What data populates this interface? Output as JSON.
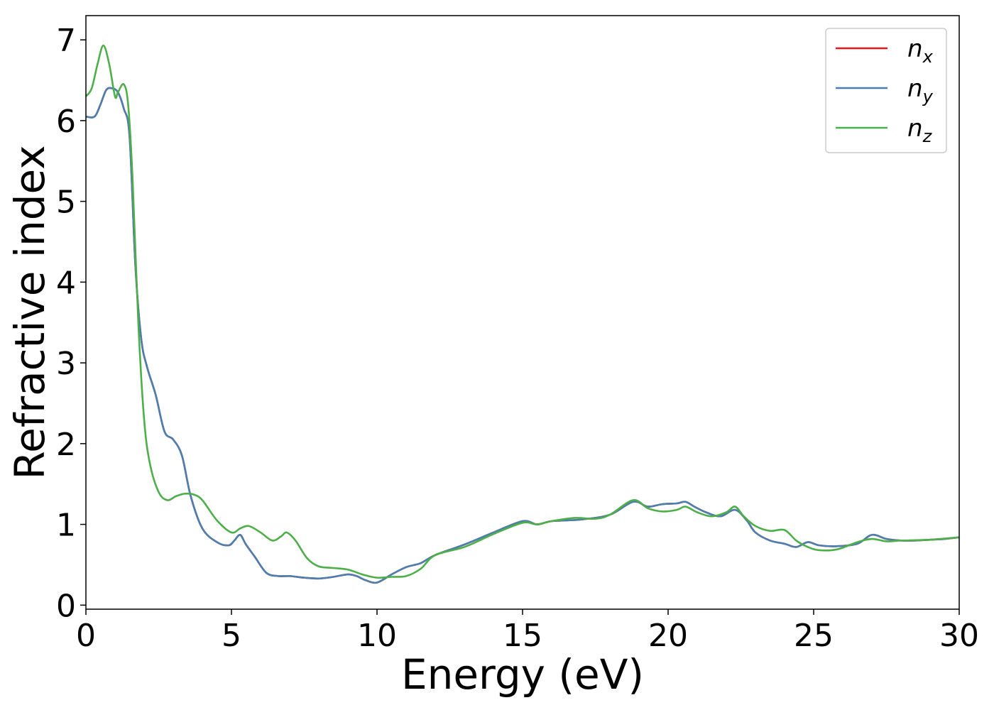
{
  "chart_data": {
    "type": "line",
    "title": "",
    "xlabel": "Energy (eV)",
    "ylabel": "Refractive index",
    "xlim": [
      0,
      30
    ],
    "ylim": [
      -0.05,
      7.3
    ],
    "xticks": [
      0,
      5,
      10,
      15,
      20,
      25,
      30
    ],
    "yticks": [
      0,
      1,
      2,
      3,
      4,
      5,
      6,
      7
    ],
    "grid": false,
    "legend_placement": "top-right",
    "series": [
      {
        "name": "n_x",
        "label_base": "n",
        "label_sub": "x",
        "color": "#e41a1c",
        "x": [
          0,
          0.3,
          0.5,
          0.7,
          0.9,
          1.1,
          1.3,
          1.5,
          1.7,
          1.9,
          2.1,
          2.4,
          2.7,
          3.0,
          3.3,
          3.6,
          4.0,
          4.5,
          4.9,
          5.1,
          5.3,
          5.5,
          5.8,
          6.2,
          6.6,
          7.0,
          7.5,
          8.0,
          8.5,
          9.0,
          9.3,
          9.6,
          10.0,
          10.5,
          11.0,
          11.5,
          12.0,
          13.0,
          14.0,
          15.0,
          15.5,
          16.0,
          17.0,
          18.0,
          18.8,
          19.3,
          19.8,
          20.3,
          20.6,
          20.9,
          21.3,
          21.8,
          22.3,
          22.7,
          23.0,
          23.5,
          24.0,
          24.4,
          24.8,
          25.2,
          25.8,
          26.5,
          27.0,
          27.5,
          28.0,
          28.5,
          29.0,
          29.5,
          30.0
        ],
        "values": [
          6.05,
          6.05,
          6.2,
          6.38,
          6.4,
          6.35,
          6.15,
          5.8,
          4.2,
          3.3,
          2.95,
          2.6,
          2.15,
          2.05,
          1.85,
          1.35,
          0.95,
          0.78,
          0.74,
          0.8,
          0.87,
          0.75,
          0.6,
          0.4,
          0.36,
          0.36,
          0.34,
          0.33,
          0.35,
          0.38,
          0.36,
          0.31,
          0.28,
          0.38,
          0.47,
          0.52,
          0.62,
          0.75,
          0.9,
          1.04,
          1.0,
          1.04,
          1.06,
          1.12,
          1.28,
          1.22,
          1.25,
          1.26,
          1.28,
          1.22,
          1.15,
          1.1,
          1.18,
          1.05,
          0.9,
          0.8,
          0.76,
          0.72,
          0.78,
          0.74,
          0.73,
          0.76,
          0.87,
          0.82,
          0.8,
          0.8,
          0.81,
          0.82,
          0.84
        ]
      },
      {
        "name": "n_y",
        "label_base": "n",
        "label_sub": "y",
        "color": "#4a7fb0",
        "x": [
          0,
          0.3,
          0.5,
          0.7,
          0.9,
          1.1,
          1.3,
          1.5,
          1.7,
          1.9,
          2.1,
          2.4,
          2.7,
          3.0,
          3.3,
          3.6,
          4.0,
          4.5,
          4.9,
          5.1,
          5.3,
          5.5,
          5.8,
          6.2,
          6.6,
          7.0,
          7.5,
          8.0,
          8.5,
          9.0,
          9.3,
          9.6,
          10.0,
          10.5,
          11.0,
          11.5,
          12.0,
          13.0,
          14.0,
          15.0,
          15.5,
          16.0,
          17.0,
          18.0,
          18.8,
          19.3,
          19.8,
          20.3,
          20.6,
          20.9,
          21.3,
          21.8,
          22.3,
          22.7,
          23.0,
          23.5,
          24.0,
          24.4,
          24.8,
          25.2,
          25.8,
          26.5,
          27.0,
          27.5,
          28.0,
          28.5,
          29.0,
          29.5,
          30.0
        ],
        "values": [
          6.05,
          6.05,
          6.2,
          6.38,
          6.4,
          6.35,
          6.15,
          5.8,
          4.2,
          3.3,
          2.95,
          2.6,
          2.15,
          2.05,
          1.85,
          1.35,
          0.95,
          0.78,
          0.74,
          0.8,
          0.87,
          0.75,
          0.6,
          0.4,
          0.36,
          0.36,
          0.34,
          0.33,
          0.35,
          0.38,
          0.36,
          0.31,
          0.28,
          0.38,
          0.47,
          0.52,
          0.62,
          0.75,
          0.9,
          1.04,
          1.0,
          1.04,
          1.06,
          1.12,
          1.28,
          1.22,
          1.25,
          1.26,
          1.28,
          1.22,
          1.15,
          1.1,
          1.18,
          1.05,
          0.9,
          0.8,
          0.76,
          0.72,
          0.78,
          0.74,
          0.73,
          0.76,
          0.87,
          0.82,
          0.8,
          0.8,
          0.81,
          0.82,
          0.84
        ]
      },
      {
        "name": "n_z",
        "label_base": "n",
        "label_sub": "z",
        "color": "#4daf4a",
        "x": [
          0,
          0.2,
          0.4,
          0.6,
          0.8,
          1.0,
          1.1,
          1.3,
          1.45,
          1.6,
          1.8,
          2.0,
          2.2,
          2.5,
          2.8,
          3.1,
          3.4,
          3.7,
          4.0,
          4.5,
          5.0,
          5.3,
          5.6,
          6.0,
          6.4,
          6.7,
          6.9,
          7.2,
          7.6,
          8.0,
          8.5,
          9.0,
          9.5,
          10.0,
          10.5,
          11.0,
          11.5,
          12.0,
          13.0,
          14.0,
          15.0,
          15.5,
          16.0,
          16.8,
          17.5,
          18.0,
          18.8,
          19.3,
          19.8,
          20.3,
          20.6,
          21.0,
          21.5,
          22.0,
          22.3,
          22.6,
          23.0,
          23.5,
          24.0,
          24.4,
          24.8,
          25.2,
          25.8,
          26.5,
          27.0,
          27.5,
          28.0,
          29.0,
          30.0
        ],
        "values": [
          6.3,
          6.4,
          6.7,
          6.93,
          6.7,
          6.3,
          6.35,
          6.45,
          6.2,
          5.3,
          3.5,
          2.3,
          1.75,
          1.4,
          1.3,
          1.35,
          1.38,
          1.37,
          1.3,
          1.05,
          0.9,
          0.95,
          0.98,
          0.9,
          0.8,
          0.85,
          0.9,
          0.8,
          0.58,
          0.48,
          0.46,
          0.44,
          0.38,
          0.34,
          0.35,
          0.36,
          0.45,
          0.62,
          0.72,
          0.88,
          1.02,
          1.0,
          1.04,
          1.08,
          1.07,
          1.12,
          1.3,
          1.2,
          1.16,
          1.18,
          1.22,
          1.15,
          1.1,
          1.15,
          1.22,
          1.1,
          0.98,
          0.92,
          0.93,
          0.8,
          0.72,
          0.68,
          0.69,
          0.78,
          0.82,
          0.79,
          0.8,
          0.81,
          0.84
        ]
      }
    ]
  }
}
